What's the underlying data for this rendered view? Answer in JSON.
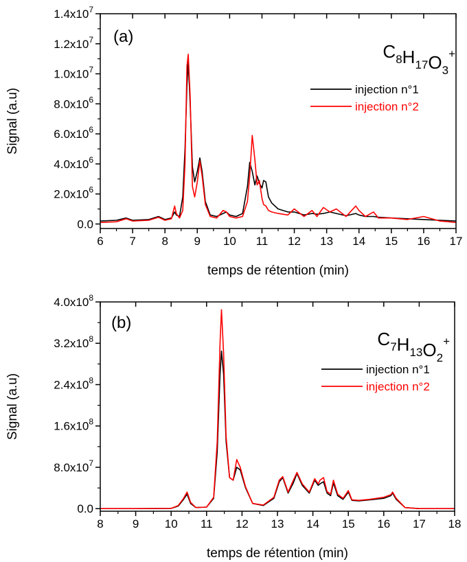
{
  "chart_data": [
    {
      "type": "line",
      "panel_label": "(a)",
      "formula": {
        "base": [
          "C",
          "H",
          "O"
        ],
        "counts": [
          "8",
          "17",
          "3"
        ],
        "charge": "+"
      },
      "xlabel": "temps de rétention (min)",
      "ylabel": "Signal (a.u)",
      "xlim": [
        6,
        17
      ],
      "ylim": [
        -300000,
        14000000
      ],
      "xticks": [
        "6",
        "7",
        "8",
        "9",
        "10",
        "11",
        "12",
        "13",
        "14",
        "15",
        "16",
        "17"
      ],
      "yticks": [
        {
          "value": 0,
          "mant": "0.0",
          "exp": ""
        },
        {
          "value": 2000000,
          "mant": "2.0x10",
          "exp": "6"
        },
        {
          "value": 4000000,
          "mant": "4.0x10",
          "exp": "6"
        },
        {
          "value": 6000000,
          "mant": "6.0x10",
          "exp": "6"
        },
        {
          "value": 8000000,
          "mant": "8.0x10",
          "exp": "6"
        },
        {
          "value": 10000000,
          "mant": "1.0x10",
          "exp": "7"
        },
        {
          "value": 12000000,
          "mant": "1.2x10",
          "exp": "7"
        },
        {
          "value": 14000000,
          "mant": "1.4x10",
          "exp": "7"
        }
      ],
      "legend_position": "top-right",
      "series": [
        {
          "name": "injection n°1",
          "color": "#000000",
          "x": [
            6.0,
            6.5,
            6.8,
            7.0,
            7.5,
            7.8,
            8.0,
            8.2,
            8.3,
            8.35,
            8.45,
            8.55,
            8.62,
            8.68,
            8.72,
            8.78,
            8.85,
            8.92,
            9.0,
            9.08,
            9.15,
            9.25,
            9.4,
            9.6,
            9.8,
            9.9,
            10.0,
            10.2,
            10.4,
            10.55,
            10.62,
            10.7,
            10.78,
            10.85,
            10.92,
            11.0,
            11.05,
            11.12,
            11.2,
            11.3,
            11.5,
            11.8,
            12.0,
            12.3,
            12.55,
            12.7,
            12.9,
            13.1,
            13.3,
            13.6,
            13.9,
            14.0,
            14.2,
            14.45,
            14.6,
            15.0,
            15.5,
            16.0,
            16.5,
            17.0
          ],
          "y": [
            200000,
            250000,
            400000,
            250000,
            300000,
            500000,
            300000,
            400000,
            800000,
            600000,
            500000,
            1800000,
            5000000,
            9200000,
            10800000,
            8000000,
            3800000,
            2800000,
            3500000,
            4400000,
            3500000,
            1500000,
            600000,
            500000,
            700000,
            800000,
            600000,
            500000,
            700000,
            2500000,
            4100000,
            3500000,
            2600000,
            3200000,
            2700000,
            2400000,
            2900000,
            2800000,
            1800000,
            1400000,
            1000000,
            800000,
            800000,
            600000,
            700000,
            650000,
            700000,
            800000,
            700000,
            550000,
            700000,
            600000,
            500000,
            500000,
            450000,
            400000,
            350000,
            300000,
            250000,
            200000
          ]
        },
        {
          "name": "injection n°2",
          "color": "#ff0000",
          "x": [
            6.0,
            6.5,
            6.8,
            7.0,
            7.5,
            7.8,
            8.0,
            8.2,
            8.3,
            8.35,
            8.45,
            8.55,
            8.62,
            8.68,
            8.72,
            8.78,
            8.85,
            8.92,
            9.0,
            9.08,
            9.15,
            9.25,
            9.4,
            9.6,
            9.8,
            9.9,
            10.0,
            10.2,
            10.4,
            10.55,
            10.62,
            10.7,
            10.78,
            10.85,
            10.92,
            11.0,
            11.05,
            11.12,
            11.2,
            11.3,
            11.5,
            11.8,
            12.0,
            12.3,
            12.55,
            12.7,
            12.9,
            13.1,
            13.3,
            13.6,
            13.9,
            14.0,
            14.2,
            14.45,
            14.6,
            15.0,
            15.5,
            16.0,
            16.5,
            17.0
          ],
          "y": [
            100000,
            150000,
            350000,
            200000,
            250000,
            450000,
            250000,
            350000,
            1200000,
            700000,
            400000,
            900000,
            4000000,
            10500000,
            11300000,
            8500000,
            2500000,
            1800000,
            2800000,
            4200000,
            3200000,
            1300000,
            500000,
            400000,
            900000,
            800000,
            500000,
            400000,
            500000,
            1500000,
            3200000,
            5900000,
            4300000,
            2600000,
            2900000,
            1700000,
            1300000,
            1200000,
            900000,
            800000,
            700000,
            600000,
            1000000,
            500000,
            900000,
            500000,
            1100000,
            800000,
            1000000,
            500000,
            1200000,
            900000,
            500000,
            800000,
            400000,
            400000,
            300000,
            500000,
            200000,
            100000
          ]
        }
      ]
    },
    {
      "type": "line",
      "panel_label": "(b)",
      "formula": {
        "base": [
          "C",
          "H",
          "O"
        ],
        "counts": [
          "7",
          "13",
          "2"
        ],
        "charge": "+"
      },
      "xlabel": "temps de rétention (min)",
      "ylabel": "Signal (a.u)",
      "xlim": [
        8,
        18
      ],
      "ylim": [
        -5000000,
        400000000
      ],
      "xticks": [
        "8",
        "9",
        "10",
        "11",
        "12",
        "13",
        "14",
        "15",
        "16",
        "17",
        "18"
      ],
      "yticks": [
        {
          "value": 0,
          "mant": "0.0",
          "exp": ""
        },
        {
          "value": 80000000,
          "mant": "8.0x10",
          "exp": "7"
        },
        {
          "value": 160000000,
          "mant": "1.6x10",
          "exp": "8"
        },
        {
          "value": 240000000,
          "mant": "2.4x10",
          "exp": "8"
        },
        {
          "value": 320000000,
          "mant": "3.2x10",
          "exp": "8"
        },
        {
          "value": 400000000,
          "mant": "4.0x10",
          "exp": "8"
        }
      ],
      "legend_position": "top-right",
      "series": [
        {
          "name": "injection n°1",
          "color": "#000000",
          "x": [
            8.0,
            9.0,
            10.0,
            10.2,
            10.35,
            10.45,
            10.55,
            10.7,
            11.0,
            11.2,
            11.3,
            11.38,
            11.42,
            11.48,
            11.55,
            11.65,
            11.75,
            11.85,
            11.95,
            12.1,
            12.3,
            12.6,
            12.9,
            13.05,
            13.15,
            13.3,
            13.45,
            13.55,
            13.7,
            13.9,
            14.05,
            14.15,
            14.2,
            14.3,
            14.4,
            14.5,
            14.58,
            14.7,
            14.85,
            15.0,
            15.1,
            15.3,
            15.6,
            16.0,
            16.2,
            16.25,
            16.35,
            16.6,
            17.0,
            18.0
          ],
          "y": [
            0,
            0,
            500000,
            5000000,
            18000000,
            28000000,
            10000000,
            2000000,
            3000000,
            20000000,
            110000000,
            260000000,
            305000000,
            260000000,
            130000000,
            60000000,
            55000000,
            80000000,
            75000000,
            40000000,
            10000000,
            6000000,
            20000000,
            52000000,
            60000000,
            30000000,
            50000000,
            68000000,
            45000000,
            30000000,
            55000000,
            45000000,
            48000000,
            52000000,
            30000000,
            25000000,
            50000000,
            25000000,
            18000000,
            32000000,
            16000000,
            15000000,
            17000000,
            20000000,
            25000000,
            30000000,
            18000000,
            2000000,
            0,
            0
          ]
        },
        {
          "name": "injection n°2",
          "color": "#ff0000",
          "x": [
            8.0,
            9.0,
            10.0,
            10.2,
            10.35,
            10.45,
            10.55,
            10.7,
            11.0,
            11.2,
            11.3,
            11.38,
            11.42,
            11.48,
            11.55,
            11.65,
            11.75,
            11.85,
            11.95,
            12.1,
            12.3,
            12.6,
            12.9,
            13.05,
            13.15,
            13.3,
            13.45,
            13.55,
            13.7,
            13.9,
            14.05,
            14.15,
            14.2,
            14.3,
            14.4,
            14.5,
            14.58,
            14.7,
            14.85,
            15.0,
            15.1,
            15.3,
            15.6,
            16.0,
            16.2,
            16.25,
            16.35,
            16.6,
            17.0,
            18.0
          ],
          "y": [
            0,
            0,
            500000,
            6000000,
            20000000,
            32000000,
            12000000,
            2000000,
            3000000,
            22000000,
            130000000,
            320000000,
            385000000,
            300000000,
            140000000,
            60000000,
            55000000,
            95000000,
            80000000,
            42000000,
            10000000,
            7000000,
            22000000,
            55000000,
            62000000,
            32000000,
            55000000,
            70000000,
            48000000,
            32000000,
            58000000,
            48000000,
            55000000,
            60000000,
            33000000,
            28000000,
            55000000,
            28000000,
            20000000,
            35000000,
            17000000,
            16000000,
            18000000,
            22000000,
            27000000,
            32000000,
            20000000,
            2000000,
            0,
            0
          ]
        }
      ]
    }
  ]
}
